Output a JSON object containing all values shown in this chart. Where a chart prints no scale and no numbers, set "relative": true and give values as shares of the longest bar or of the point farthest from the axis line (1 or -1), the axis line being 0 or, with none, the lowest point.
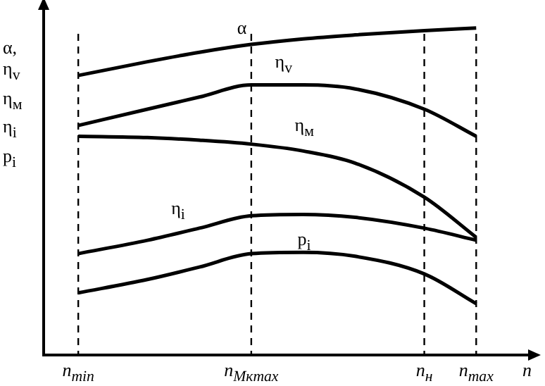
{
  "chart_data": {
    "type": "line",
    "relative": true,
    "ylabel": "α, η$_{v}$ η$_{м}$ η$_{i}$ p$_{i}$",
    "xlabel": "n",
    "categories": [
      null,
      null,
      "n$_{min}$",
      null,
      null,
      null,
      null,
      null,
      null,
      null,
      null,
      null,
      "n$_{Mкmax}$",
      null,
      null,
      null,
      null,
      null,
      null,
      null,
      null,
      null,
      "n$_{н}$",
      null,
      null,
      "n$_{max}$",
      null,
      null,
      null
    ],
    "series": [
      {
        "name": "α",
        "color": "#000000",
        "values": [
          null,
          null,
          0.855,
          null,
          null,
          null,
          0.897,
          null,
          null,
          0.926,
          null,
          null,
          0.95,
          null,
          null,
          0.967,
          null,
          null,
          0.979,
          null,
          null,
          null,
          0.992,
          null,
          null,
          1,
          null,
          null,
          null
        ]
      },
      {
        "name": "η$_{v}$",
        "color": "#000000",
        "values": [
          null,
          null,
          0.702,
          null,
          null,
          null,
          0.752,
          null,
          null,
          0.789,
          null,
          null,
          0.826,
          null,
          null,
          0.826,
          null,
          null,
          0.814,
          null,
          null,
          null,
          0.752,
          null,
          null,
          0.669,
          null,
          null,
          null
        ]
      },
      {
        "name": "η$_{м}$",
        "color": "#000000",
        "values": [
          null,
          null,
          0.669,
          null,
          null,
          null,
          0.665,
          null,
          null,
          0.657,
          null,
          null,
          0.645,
          null,
          null,
          0.624,
          null,
          null,
          0.587,
          null,
          null,
          null,
          0.483,
          null,
          null,
          0.36,
          null,
          null,
          null
        ]
      },
      {
        "name": "η$_{i}$",
        "color": "#000000",
        "values": [
          null,
          null,
          0.31,
          null,
          null,
          null,
          0.351,
          null,
          null,
          0.388,
          null,
          null,
          0.426,
          null,
          null,
          0.43,
          null,
          null,
          0.421,
          null,
          null,
          null,
          0.388,
          null,
          null,
          0.351,
          null,
          null,
          null
        ]
      },
      {
        "name": "p$_{i}$",
        "color": "#000000",
        "values": [
          null,
          null,
          0.19,
          null,
          null,
          null,
          0.231,
          null,
          null,
          0.269,
          null,
          null,
          0.31,
          null,
          null,
          0.314,
          null,
          null,
          0.302,
          null,
          null,
          null,
          0.248,
          null,
          null,
          0.157,
          null,
          null,
          null
        ]
      }
    ],
    "ref_lines": [
      {
        "axis": "x",
        "value": "n$_{min}$",
        "line_style": "dashed"
      },
      {
        "axis": "x",
        "value": "n$_{Mкmax}$",
        "line_style": "dashed"
      },
      {
        "axis": "x",
        "value": "n$_{н}$",
        "line_style": "dashed"
      },
      {
        "axis": "x",
        "value": "n$_{max}$",
        "line_style": "dashed"
      }
    ],
    "legend": false,
    "grid": false,
    "marker": "none",
    "line_style": "solid"
  }
}
